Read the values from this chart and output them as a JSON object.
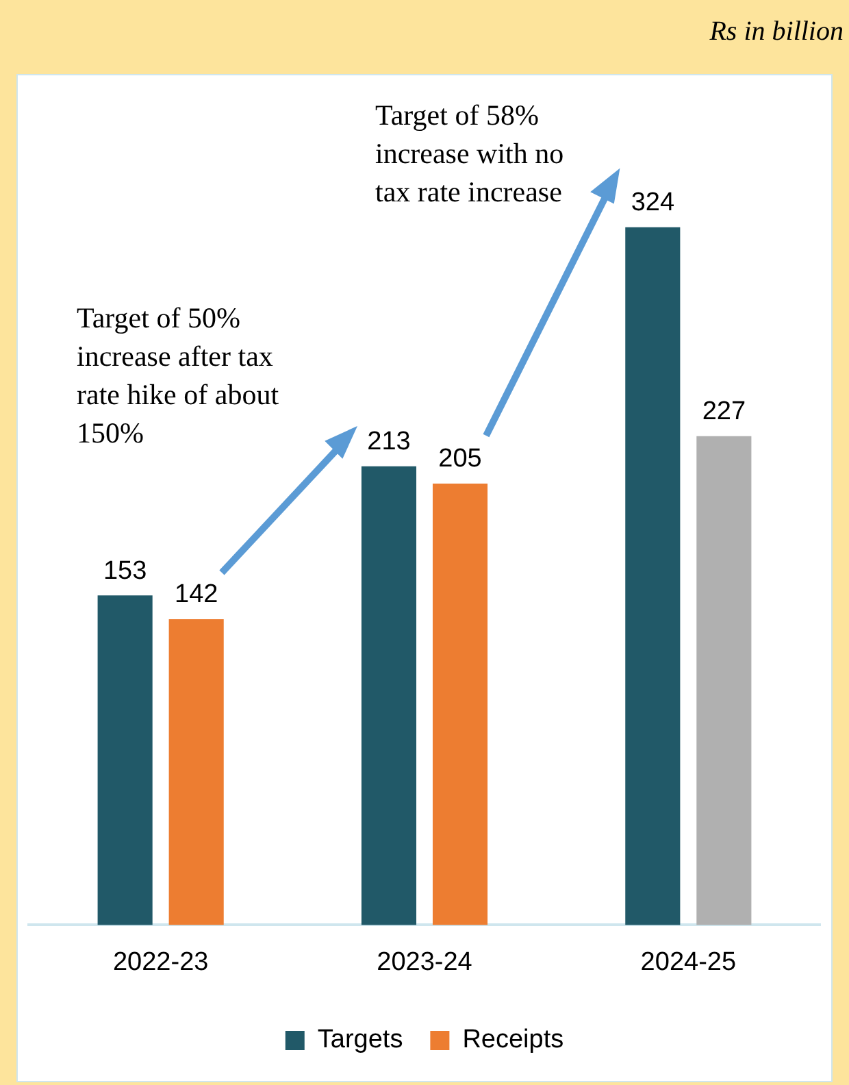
{
  "chart_data": {
    "type": "bar",
    "subtitle": "Rs in billion",
    "categories": [
      "2022-23",
      "2023-24",
      "2024-25"
    ],
    "series": [
      {
        "name": "Targets",
        "color": "#215968",
        "values": [
          153,
          213,
          324
        ]
      },
      {
        "name": "Receipts",
        "color": "#ed7d31",
        "colors": [
          "#ed7d31",
          "#ed7d31",
          "#b0b0b0"
        ],
        "values": [
          142,
          205,
          227
        ]
      }
    ],
    "data_labels": true,
    "legend": "bottom",
    "grid": false,
    "annotations": [
      "Target of 50% increase after tax rate hike of about 150%",
      "Target of 58% increase with no tax rate increase"
    ]
  }
}
